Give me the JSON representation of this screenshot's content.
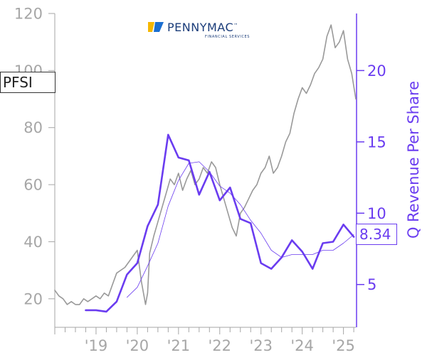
{
  "ticker": "PFSI",
  "logo": {
    "name": "PENNYMAC",
    "trademark": "™",
    "subtitle": "FINANCIAL SERVICES",
    "colors": {
      "yellow": "#f5b700",
      "blue": "#1b6fd1"
    }
  },
  "last_value_label": "8.34",
  "colors": {
    "price": "#999999",
    "revenue": "#6a3cf0",
    "left_axis": "#a6a6a6"
  },
  "chart_data": {
    "type": "line",
    "xlabel": "",
    "ylabel_left": "",
    "ylabel_right": "Q Revenue Per Share",
    "x_tick_labels": [
      "'19",
      "'20",
      "'21",
      "'22",
      "'23",
      "'24",
      "'25"
    ],
    "x_tick_years": [
      2019,
      2020,
      2021,
      2022,
      2023,
      2024,
      2025
    ],
    "xlim": [
      2018.0,
      2025.3
    ],
    "ylim_left": [
      10,
      120
    ],
    "left_ticks": [
      20,
      40,
      60,
      80,
      100,
      120
    ],
    "ylim_right": [
      2,
      24
    ],
    "right_ticks": [
      5,
      10,
      15,
      20
    ],
    "grid": false,
    "series": [
      {
        "axis": "left",
        "style": "price",
        "x": [
          2018.0,
          2018.1,
          2018.2,
          2018.3,
          2018.4,
          2018.5,
          2018.6,
          2018.7,
          2018.8,
          2018.9,
          2019.0,
          2019.1,
          2019.2,
          2019.3,
          2019.4,
          2019.5,
          2019.6,
          2019.7,
          2019.8,
          2019.9,
          2020.0,
          2020.1,
          2020.2,
          2020.25,
          2020.3,
          2020.4,
          2020.5,
          2020.6,
          2020.7,
          2020.8,
          2020.9,
          2021.0,
          2021.1,
          2021.2,
          2021.3,
          2021.4,
          2021.5,
          2021.6,
          2021.7,
          2021.8,
          2021.9,
          2022.0,
          2022.1,
          2022.2,
          2022.3,
          2022.4,
          2022.5,
          2022.6,
          2022.7,
          2022.8,
          2022.9,
          2023.0,
          2023.1,
          2023.2,
          2023.3,
          2023.4,
          2023.5,
          2023.6,
          2023.7,
          2023.8,
          2023.9,
          2024.0,
          2024.1,
          2024.2,
          2024.3,
          2024.4,
          2024.5,
          2024.6,
          2024.7,
          2024.8,
          2024.9,
          2025.0,
          2025.1,
          2025.2,
          2025.3
        ],
        "y": [
          23,
          21,
          20,
          18,
          19,
          18,
          18,
          20,
          19,
          20,
          21,
          20,
          22,
          21,
          25,
          29,
          30,
          31,
          33,
          35,
          37,
          26,
          18,
          22,
          36,
          42,
          47,
          52,
          57,
          62,
          60,
          64,
          58,
          62,
          65,
          60,
          62,
          66,
          64,
          68,
          66,
          60,
          55,
          50,
          45,
          42,
          50,
          52,
          55,
          58,
          60,
          64,
          66,
          70,
          64,
          66,
          70,
          75,
          78,
          85,
          90,
          94,
          92,
          95,
          99,
          101,
          104,
          112,
          116,
          108,
          110,
          114,
          104,
          99,
          90
        ]
      },
      {
        "axis": "right",
        "style": "revenue",
        "x": [
          2018.75,
          2019.0,
          2019.25,
          2019.5,
          2019.75,
          2020.0,
          2020.25,
          2020.5,
          2020.75,
          2021.0,
          2021.25,
          2021.5,
          2021.75,
          2022.0,
          2022.25,
          2022.5,
          2022.75,
          2023.0,
          2023.25,
          2023.5,
          2023.75,
          2024.0,
          2024.25,
          2024.5,
          2024.75,
          2025.0,
          2025.25
        ],
        "y": [
          3.2,
          3.2,
          3.1,
          3.8,
          5.7,
          6.5,
          9.1,
          10.6,
          15.5,
          13.9,
          13.7,
          11.3,
          12.9,
          10.9,
          11.8,
          9.6,
          9.3,
          6.5,
          6.1,
          6.9,
          8.1,
          7.3,
          6.1,
          7.9,
          8.0,
          9.2,
          8.34
        ]
      },
      {
        "axis": "right",
        "style": "revenue-average",
        "x": [
          2019.75,
          2020.0,
          2020.25,
          2020.5,
          2020.75,
          2021.0,
          2021.25,
          2021.5,
          2021.75,
          2022.0,
          2022.25,
          2022.5,
          2022.75,
          2023.0,
          2023.25,
          2023.5,
          2023.75,
          2024.0,
          2024.25,
          2024.5,
          2024.75,
          2025.0,
          2025.25
        ],
        "y": [
          4.1,
          4.8,
          6.3,
          7.9,
          10.5,
          12.3,
          13.5,
          13.6,
          12.9,
          11.9,
          11.4,
          10.6,
          9.5,
          8.6,
          7.4,
          6.9,
          7.1,
          7.1,
          7.1,
          7.4,
          7.4,
          7.9,
          8.5
        ]
      }
    ]
  }
}
